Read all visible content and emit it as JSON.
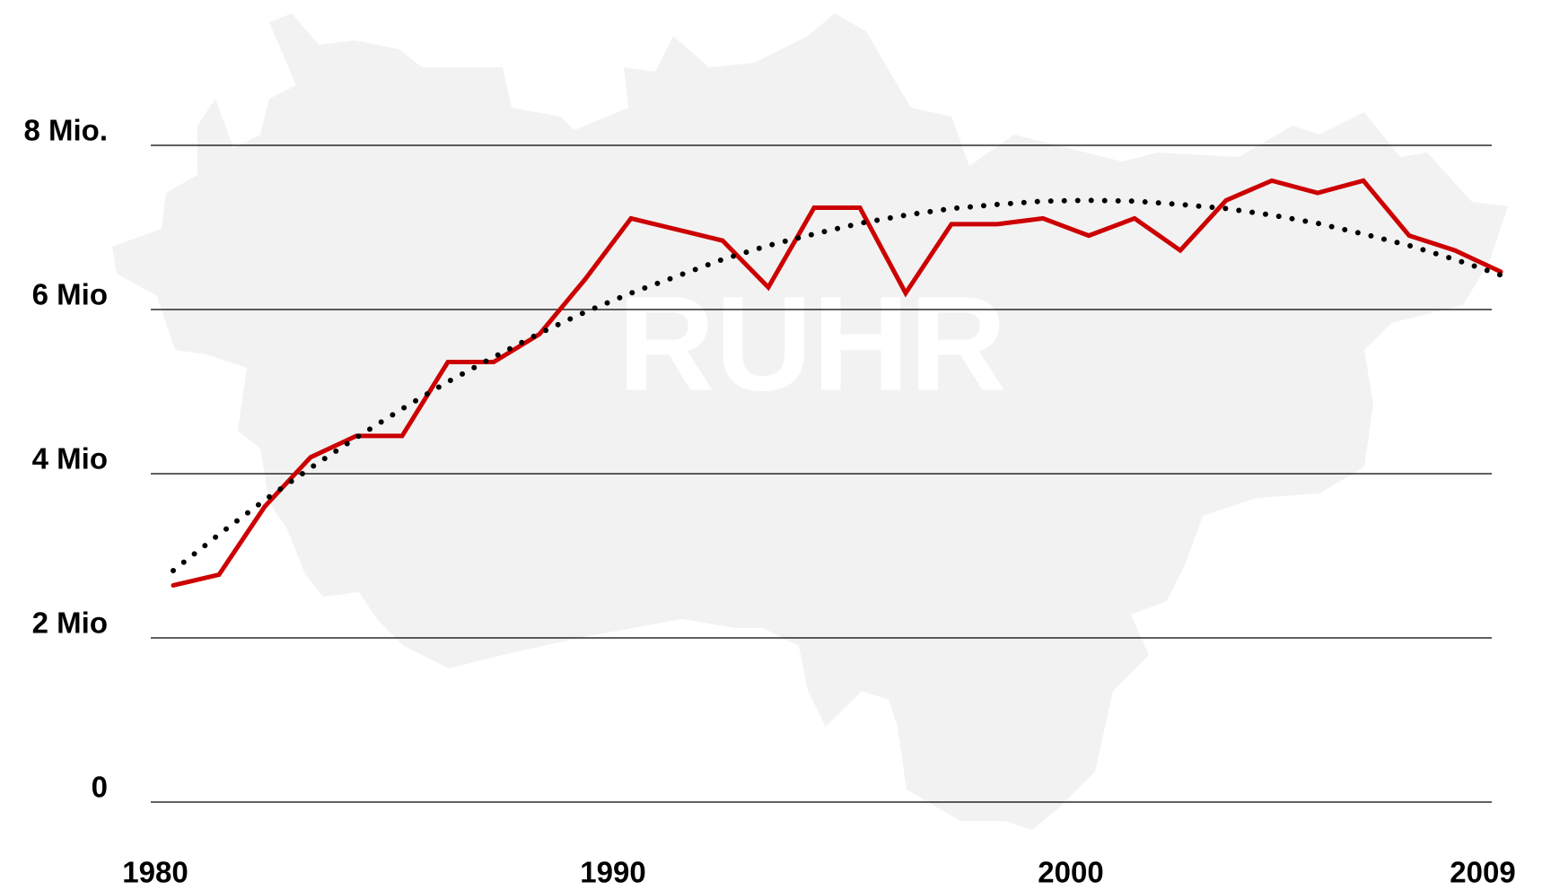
{
  "chart_data": {
    "type": "line",
    "watermark": "RUHR",
    "x": [
      1980,
      1981,
      1982,
      1983,
      1984,
      1985,
      1986,
      1987,
      1988,
      1989,
      1990,
      1992,
      1993,
      1994,
      1995,
      1996,
      1997,
      1998,
      1999,
      2000,
      2001,
      2002,
      2003,
      2004,
      2005,
      2006,
      2007,
      2008,
      2009
    ],
    "series": [
      {
        "color": "#cc0000",
        "style": "solid",
        "values": [
          2.64,
          2.77,
          3.6,
          4.2,
          4.46,
          4.46,
          5.36,
          5.36,
          5.7,
          6.37,
          7.11,
          6.84,
          6.27,
          7.24,
          7.24,
          6.2,
          7.04,
          7.04,
          7.11,
          6.9,
          7.11,
          6.72,
          7.33,
          7.57,
          7.42,
          7.57,
          6.9,
          6.72,
          6.46
        ]
      },
      {
        "color": "#000000",
        "style": "dotted",
        "values": [
          2.82,
          3.26,
          3.68,
          4.07,
          4.44,
          4.79,
          5.12,
          5.42,
          5.71,
          5.97,
          6.2,
          6.61,
          6.78,
          6.92,
          7.05,
          7.15,
          7.23,
          7.28,
          7.32,
          7.33,
          7.32,
          7.28,
          7.23,
          7.15,
          7.05,
          6.92,
          6.78,
          6.61,
          6.42
        ]
      }
    ],
    "xlim": [
      1980,
      2009
    ],
    "xticks": [
      1980,
      1990,
      2000,
      2009
    ],
    "ylim": [
      0,
      8
    ],
    "yticks": [
      0,
      {
        "value": 2,
        "label": "2 Mio"
      },
      {
        "value": 4,
        "label": "4 Mio"
      },
      {
        "value": 6,
        "label": "6 Mio"
      },
      {
        "value": 8,
        "label": "8 Mio."
      }
    ],
    "grid": true
  }
}
